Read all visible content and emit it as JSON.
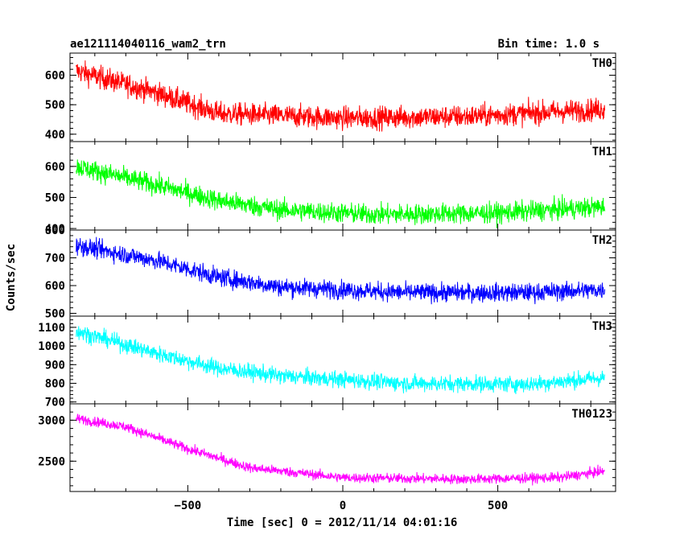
{
  "header": {
    "title": "ae121114040116_wam2_trn",
    "bin_label": "Bin time: 1.0 s"
  },
  "axes": {
    "xlabel": "Time [sec] 0 = 2012/11/14 04:01:16",
    "ylabel": "Counts/sec"
  },
  "chart_data": {
    "type": "line",
    "title": "ae121114040116_wam2_trn",
    "xlabel": "Time [sec] 0 = 2012/11/14 04:01:16",
    "ylabel": "Counts/sec",
    "xlim": [
      -880,
      880
    ],
    "xticks": [
      -500,
      0,
      500
    ],
    "grid": false,
    "x_sampling": {
      "start": -860,
      "end": 845,
      "step": 1
    },
    "panels": [
      {
        "name": "TH0",
        "color": "#ff0000",
        "ylim": [
          375,
          675
        ],
        "yticks": [
          400,
          500,
          600
        ],
        "trend": [
          [
            -860,
            615
          ],
          [
            -600,
            540
          ],
          [
            -400,
            470
          ],
          [
            0,
            455
          ],
          [
            400,
            460
          ],
          [
            845,
            485
          ]
        ],
        "noise": 35
      },
      {
        "name": "TH1",
        "color": "#00ff00",
        "ylim": [
          395,
          680
        ],
        "yticks": [
          400,
          500,
          600
        ],
        "trend": [
          [
            -860,
            600
          ],
          [
            -600,
            540
          ],
          [
            -400,
            490
          ],
          [
            -200,
            460
          ],
          [
            100,
            445
          ],
          [
            500,
            450
          ],
          [
            845,
            470
          ]
        ],
        "noise": 30
      },
      {
        "name": "TH2",
        "color": "#0000ff",
        "ylim": [
          490,
          800
        ],
        "yticks": [
          500,
          600,
          700,
          800
        ],
        "trend": [
          [
            -860,
            745
          ],
          [
            -600,
            690
          ],
          [
            -400,
            630
          ],
          [
            -200,
            595
          ],
          [
            200,
            575
          ],
          [
            600,
            575
          ],
          [
            845,
            585
          ]
        ],
        "noise": 30
      },
      {
        "name": "TH3",
        "color": "#00ffff",
        "ylim": [
          690,
          1160
        ],
        "yticks": [
          700,
          800,
          900,
          1000,
          1100
        ],
        "trend": [
          [
            -860,
            1080
          ],
          [
            -600,
            960
          ],
          [
            -400,
            880
          ],
          [
            -200,
            840
          ],
          [
            200,
            800
          ],
          [
            600,
            795
          ],
          [
            845,
            830
          ]
        ],
        "noise": 40
      },
      {
        "name": "TH0123",
        "color": "#ff00ff",
        "ylim": [
          2130,
          3200
        ],
        "yticks": [
          2500,
          3000
        ],
        "trend": [
          [
            -860,
            3020
          ],
          [
            -700,
            2920
          ],
          [
            -500,
            2650
          ],
          [
            -300,
            2420
          ],
          [
            0,
            2300
          ],
          [
            400,
            2280
          ],
          [
            700,
            2300
          ],
          [
            845,
            2380
          ]
        ],
        "noise": 55
      }
    ]
  }
}
